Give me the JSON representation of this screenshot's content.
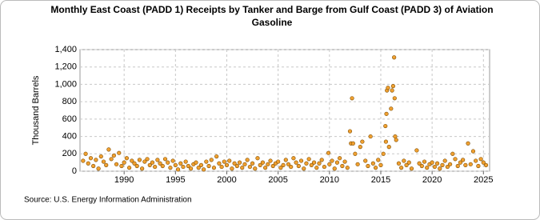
{
  "chart_data": {
    "type": "scatter",
    "title": "Monthly East Coast (PADD 1) Receipts by Tanker and Barge from Gulf Coast (PADD 3) of Aviation Gasoline",
    "ylabel": "Thousand Barrels",
    "source": "Source: U.S. Energy Information Administration",
    "color": "#f0a030",
    "edgecolor": "#7a4a00",
    "grid": true,
    "xlim": [
      1985.7,
      2025.6
    ],
    "xticks": [
      1990,
      1995,
      2000,
      2005,
      2010,
      2015,
      2020,
      2025
    ],
    "ylim": [
      0,
      1400
    ],
    "yticks": [
      0,
      200,
      400,
      600,
      800,
      {
        "value": 1000,
        "label": "1,000"
      },
      {
        "value": 1200,
        "label": "1,200"
      },
      {
        "value": 1400,
        "label": "1,400"
      }
    ],
    "x": [
      1986,
      1986.25,
      1986.5,
      1986.75,
      1987,
      1987.25,
      1987.5,
      1987.75,
      1988,
      1988.25,
      1988.5,
      1988.75,
      1989,
      1989.25,
      1989.5,
      1989.75,
      1990,
      1990.25,
      1990.5,
      1990.75,
      1991,
      1991.25,
      1991.5,
      1991.75,
      1992,
      1992.25,
      1992.5,
      1992.75,
      1993,
      1993.25,
      1993.5,
      1993.75,
      1994,
      1994.25,
      1994.5,
      1994.75,
      1995,
      1995.25,
      1995.5,
      1995.75,
      1996,
      1996.25,
      1996.5,
      1996.75,
      1997,
      1997.25,
      1997.5,
      1997.75,
      1998,
      1998.25,
      1998.5,
      1998.75,
      1999,
      1999.25,
      1999.5,
      1999.75,
      2000,
      2000.25,
      2000.5,
      2000.75,
      2001,
      2001.25,
      2001.5,
      2001.75,
      2002,
      2002.25,
      2002.5,
      2002.75,
      2003,
      2003.25,
      2003.5,
      2003.75,
      2004,
      2004.25,
      2004.5,
      2004.75,
      2005,
      2005.25,
      2005.5,
      2005.75,
      2006,
      2006.25,
      2006.5,
      2006.75,
      2007,
      2007.25,
      2007.5,
      2007.75,
      2008,
      2008.25,
      2008.5,
      2008.75,
      2009,
      2009.25,
      2009.5,
      2009.9,
      2010,
      2010.25,
      2010.5,
      2010.75,
      2011,
      2011.25,
      2011.5,
      2011.75,
      2012,
      2012.1,
      2012.2,
      2012.3,
      2012.5,
      2012.75,
      2013,
      2013.2,
      2013.5,
      2013.75,
      2014,
      2014.25,
      2014.5,
      2014.75,
      2015,
      2015.25,
      2015.45,
      2015.5,
      2015.55,
      2015.6,
      2015.7,
      2015.8,
      2016,
      2016.1,
      2016.2,
      2016.3,
      2016.35,
      2016.4,
      2016.5,
      2016.75,
      2017,
      2017.25,
      2017.5,
      2017.75,
      2018,
      2018.5,
      2018.75,
      2019,
      2019.25,
      2019.5,
      2019.75,
      2020,
      2020.25,
      2020.5,
      2020.75,
      2021,
      2021.25,
      2021.5,
      2021.75,
      2022,
      2022.25,
      2022.5,
      2022.75,
      2023,
      2023.25,
      2023.5,
      2023.75,
      2024,
      2024.25,
      2024.5,
      2024.75,
      2025,
      2025.25
    ],
    "values": [
      120,
      200,
      90,
      150,
      60,
      130,
      30,
      170,
      110,
      70,
      250,
      140,
      180,
      80,
      210,
      60,
      100,
      150,
      40,
      120,
      90,
      60,
      130,
      30,
      110,
      140,
      70,
      100,
      50,
      130,
      90,
      60,
      140,
      100,
      40,
      120,
      70,
      20,
      90,
      50,
      110,
      60,
      30,
      80,
      100,
      40,
      70,
      20,
      110,
      60,
      130,
      40,
      170,
      90,
      50,
      110,
      70,
      120,
      30,
      90,
      60,
      100,
      40,
      80,
      130,
      50,
      90,
      30,
      150,
      70,
      100,
      40,
      80,
      120,
      60,
      90,
      110,
      40,
      70,
      130,
      80,
      50,
      150,
      100,
      60,
      120,
      30,
      90,
      140,
      70,
      100,
      40,
      90,
      130,
      50,
      210,
      80,
      120,
      30,
      100,
      150,
      60,
      110,
      40,
      460,
      320,
      840,
      320,
      200,
      80,
      280,
      340,
      120,
      60,
      400,
      90,
      40,
      130,
      70,
      200,
      520,
      340,
      660,
      930,
      960,
      280,
      720,
      930,
      980,
      1310,
      840,
      400,
      360,
      90,
      40,
      120,
      70,
      100,
      30,
      240,
      90,
      60,
      110,
      40,
      80,
      100,
      50,
      90,
      30,
      70,
      120,
      50,
      80,
      200,
      140,
      60,
      100,
      130,
      70,
      320,
      80,
      230,
      120,
      60,
      140,
      100,
      70
    ]
  }
}
